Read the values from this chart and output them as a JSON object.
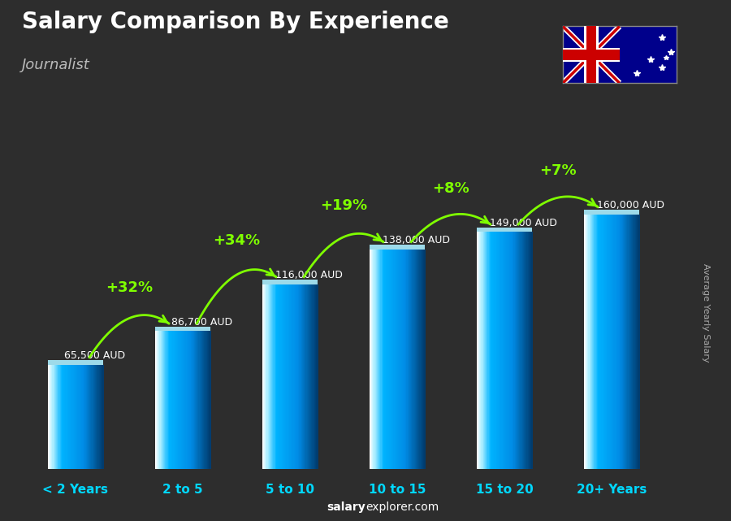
{
  "title": "Salary Comparison By Experience",
  "subtitle": "Journalist",
  "categories": [
    "< 2 Years",
    "2 to 5",
    "5 to 10",
    "10 to 15",
    "15 to 20",
    "20+ Years"
  ],
  "values": [
    65500,
    86700,
    116000,
    138000,
    149000,
    160000
  ],
  "value_labels": [
    "65,500 AUD",
    "86,700 AUD",
    "116,000 AUD",
    "138,000 AUD",
    "149,000 AUD",
    "160,000 AUD"
  ],
  "pct_changes": [
    null,
    "+32%",
    "+34%",
    "+19%",
    "+8%",
    "+7%"
  ],
  "pct_color": "#7fff00",
  "arrow_color": "#7fff00",
  "xlabel_color": "#00d8ff",
  "ylabel_text": "Average Yearly Salary",
  "source_text_bold": "salary",
  "source_text_rest": "explorer.com",
  "ylim_max": 190000,
  "bar_width": 0.52,
  "bg_color": "#2d2d2d"
}
